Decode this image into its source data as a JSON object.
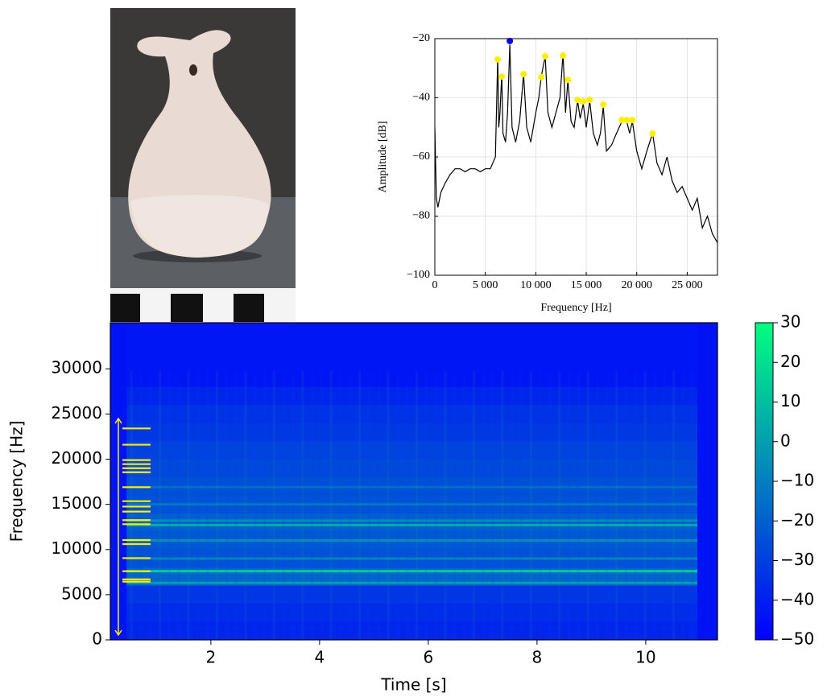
{
  "chart_data": [
    {
      "type": "line",
      "xlabel": "Frequency [Hz]",
      "ylabel": "Amplitude [dB]",
      "xlim": [
        0,
        28000
      ],
      "ylim": [
        -100,
        -20
      ],
      "xticks": [
        0,
        {
          "value": 5000,
          "label": "5 000"
        },
        {
          "value": 10000,
          "label": "10 000"
        },
        {
          "value": 15000,
          "label": "15 000"
        },
        {
          "value": 20000,
          "label": "20 000"
        },
        {
          "value": 25000,
          "label": "25 000"
        }
      ],
      "yticks": [
        {
          "value": -100,
          "label": "−100"
        },
        {
          "value": -80,
          "label": "−80"
        },
        {
          "value": -60,
          "label": "−60"
        },
        {
          "value": -40,
          "label": "−40"
        },
        {
          "value": -20,
          "label": "−20"
        }
      ],
      "grid": true,
      "color": "#000000",
      "x": [
        0,
        150,
        300,
        600,
        1000,
        1500,
        2000,
        2500,
        3000,
        3500,
        4000,
        4500,
        5000,
        5500,
        6000,
        6100,
        6230,
        6330,
        6450,
        6630,
        6750,
        7000,
        7200,
        7430,
        7650,
        8000,
        8400,
        8790,
        9100,
        9500,
        10000,
        10300,
        10540,
        10700,
        10940,
        11200,
        11600,
        12000,
        12400,
        12700,
        12950,
        13180,
        13500,
        13800,
        14140,
        14400,
        14700,
        15000,
        15340,
        15700,
        16100,
        16400,
        16690,
        17000,
        17500,
        18000,
        18530,
        19010,
        19300,
        19570,
        20000,
        20500,
        21000,
        21570,
        22000,
        22500,
        23000,
        23500,
        24000,
        24500,
        25000,
        25500,
        26000,
        26500,
        27000,
        27500,
        28000
      ],
      "values": [
        -50,
        -74,
        -77,
        -72,
        -69,
        -66,
        -64,
        -64,
        -65,
        -64,
        -64,
        -65,
        -64,
        -64,
        -60,
        -45,
        -26,
        -50,
        -45,
        -32,
        -52,
        -55,
        -45,
        -22,
        -50,
        -55,
        -48,
        -32,
        -50,
        -55,
        -45,
        -40,
        -33,
        -30,
        -26,
        -45,
        -50,
        -45,
        -40,
        -25,
        -45,
        -34,
        -48,
        -50,
        -41,
        -47,
        -42,
        -50,
        -41,
        -52,
        -56,
        -52,
        -43,
        -58,
        -56,
        -52,
        -48,
        -48,
        -52,
        -48,
        -58,
        -64,
        -58,
        -52,
        -62,
        -66,
        -60,
        -68,
        -72,
        -70,
        -74,
        -78,
        -74,
        -84,
        -80,
        -86,
        -89
      ],
      "peaks": {
        "color": "#ffee00",
        "x": [
          6230,
          6630,
          8790,
          10540,
          10940,
          12700,
          13180,
          14140,
          14700,
          15340,
          16690,
          18530,
          19010,
          19570,
          21570
        ],
        "values": [
          -27,
          -32.8,
          -32,
          -33,
          -26,
          -25.7,
          -33.9,
          -40.7,
          -41.2,
          -40.7,
          -42.3,
          -47.5,
          -47.5,
          -47.5,
          -52.1
        ]
      },
      "max_peak": {
        "color": "#0000ff",
        "x": 7430,
        "value": -20.8
      }
    },
    {
      "type": "spectrogram",
      "xlabel": "Time [s]",
      "ylabel": "Frequency [Hz]",
      "xlim": [
        0.15,
        11.32
      ],
      "ylim": [
        0,
        35100
      ],
      "xticks": [
        2,
        4,
        6,
        8,
        10
      ],
      "yticks": [
        0,
        5000,
        10000,
        15000,
        20000,
        25000,
        30000
      ],
      "clim": [
        -50,
        30
      ],
      "cticks": [
        {
          "value": -50,
          "label": "−50"
        },
        {
          "value": -40,
          "label": "−40"
        },
        {
          "value": -30,
          "label": "−30"
        },
        {
          "value": -20,
          "label": "−20"
        },
        {
          "value": -10,
          "label": "−10"
        },
        0,
        10,
        20,
        30
      ],
      "colormap": [
        "#0000ff",
        "#00ff80"
      ],
      "background_level": -44,
      "active_time": [
        0.45,
        10.95
      ],
      "freq_bins": [
        0,
        2000,
        4000,
        6000,
        8000,
        10000,
        12000,
        14000,
        16000,
        18000,
        20000,
        22000,
        24000,
        26000,
        28000,
        35100
      ],
      "levels": [
        -38,
        -36,
        -33,
        -18,
        -24,
        -22,
        -20,
        -24,
        -25,
        -27,
        -29,
        -32,
        -34,
        -38,
        -43
      ],
      "lines": {
        "freqs": [
          6300,
          7600,
          9000,
          11000,
          12700,
          13200,
          15000,
          16900
        ],
        "levels": [
          0,
          15,
          -8,
          -5,
          5,
          -5,
          -12,
          -15
        ]
      },
      "markers": {
        "color": "#ffee00",
        "freqs": [
          6450,
          6700,
          7600,
          9050,
          10600,
          11050,
          12800,
          13250,
          14200,
          14750,
          15350,
          16900,
          18550,
          19000,
          19450,
          19900,
          21600,
          23400
        ],
        "arrow_range": [
          0,
          24500
        ]
      }
    }
  ]
}
